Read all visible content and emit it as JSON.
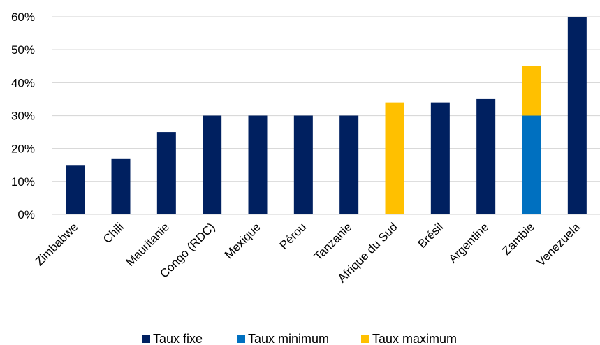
{
  "chart_data": {
    "type": "bar",
    "stacked": true,
    "categories": [
      "Zimbabwe",
      "Chili",
      "Mauritanie",
      "Congo (RDC)",
      "Mexique",
      "Pérou",
      "Tanzanie",
      "Afrique du Sud",
      "Brésil",
      "Argentine",
      "Zambie",
      "Venezuela"
    ],
    "series": [
      {
        "name": "Taux fixe",
        "color": "#002060",
        "values": [
          15,
          17,
          25,
          30,
          30,
          30,
          30,
          null,
          34,
          35,
          null,
          60
        ]
      },
      {
        "name": "Taux minimum",
        "color": "#0070C0",
        "values": [
          null,
          null,
          null,
          null,
          null,
          null,
          null,
          null,
          null,
          null,
          30,
          null
        ]
      },
      {
        "name": "Taux maximum",
        "color": "#FFC000",
        "values": [
          null,
          null,
          null,
          null,
          null,
          null,
          null,
          34,
          null,
          null,
          15,
          null
        ]
      }
    ],
    "y_ticks": [
      "0%",
      "10%",
      "20%",
      "30%",
      "40%",
      "50%",
      "60%"
    ],
    "ylim": [
      0,
      60
    ],
    "y_unit": "%",
    "grid": true,
    "legend_position": "bottom",
    "title": "",
    "xlabel": "",
    "ylabel": ""
  }
}
